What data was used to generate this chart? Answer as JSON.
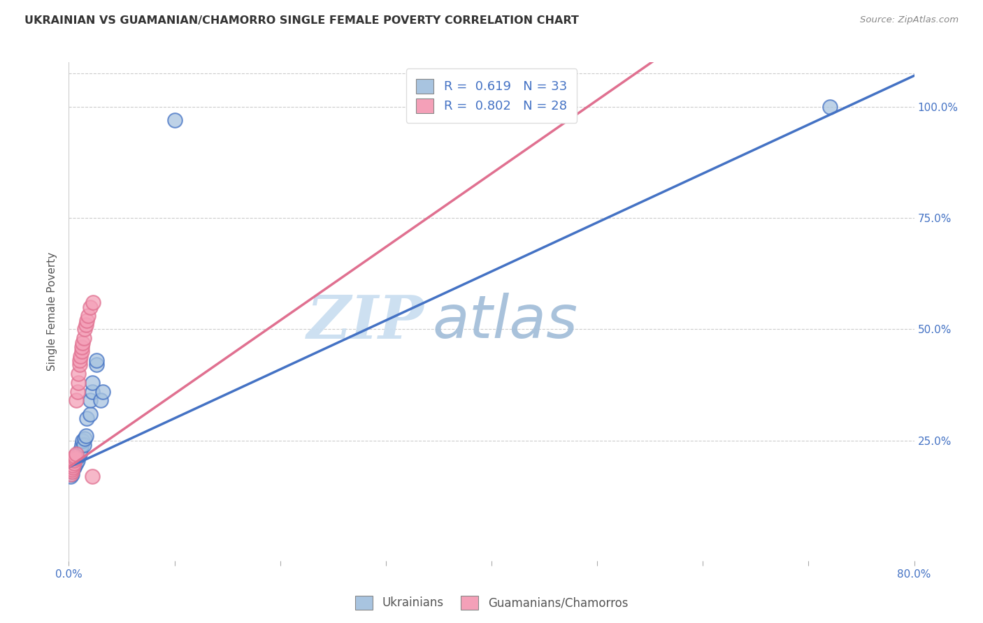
{
  "title": "UKRAINIAN VS GUAMANIAN/CHAMORRO SINGLE FEMALE POVERTY CORRELATION CHART",
  "source": "Source: ZipAtlas.com",
  "ylabel": "Single Female Poverty",
  "legend_label1": "Ukrainians",
  "legend_label2": "Guamanians/Chamorros",
  "r1": 0.619,
  "n1": 33,
  "r2": 0.802,
  "n2": 28,
  "ytick_labels": [
    "25.0%",
    "50.0%",
    "75.0%",
    "100.0%"
  ],
  "ytick_values": [
    0.25,
    0.5,
    0.75,
    1.0
  ],
  "xlim": [
    0.0,
    0.8
  ],
  "ylim": [
    -0.02,
    1.1
  ],
  "color_blue": "#a8c4e0",
  "color_pink": "#f4a0b8",
  "line_blue": "#4472c4",
  "line_pink": "#e07090",
  "watermark_zip": "ZIP",
  "watermark_atlas": "atlas",
  "blue_scatter": [
    [
      0.002,
      0.17
    ],
    [
      0.003,
      0.175
    ],
    [
      0.003,
      0.18
    ],
    [
      0.004,
      0.185
    ],
    [
      0.004,
      0.19
    ],
    [
      0.005,
      0.19
    ],
    [
      0.005,
      0.195
    ],
    [
      0.006,
      0.195
    ],
    [
      0.006,
      0.2
    ],
    [
      0.007,
      0.2
    ],
    [
      0.007,
      0.21
    ],
    [
      0.008,
      0.205
    ],
    [
      0.008,
      0.215
    ],
    [
      0.009,
      0.215
    ],
    [
      0.01,
      0.22
    ],
    [
      0.01,
      0.225
    ],
    [
      0.011,
      0.23
    ],
    [
      0.012,
      0.24
    ],
    [
      0.013,
      0.25
    ],
    [
      0.014,
      0.24
    ],
    [
      0.015,
      0.255
    ],
    [
      0.016,
      0.26
    ],
    [
      0.017,
      0.3
    ],
    [
      0.02,
      0.31
    ],
    [
      0.02,
      0.34
    ],
    [
      0.022,
      0.36
    ],
    [
      0.022,
      0.38
    ],
    [
      0.026,
      0.42
    ],
    [
      0.026,
      0.43
    ],
    [
      0.03,
      0.34
    ],
    [
      0.032,
      0.36
    ],
    [
      0.1,
      0.97
    ],
    [
      0.72,
      1.0
    ]
  ],
  "pink_scatter": [
    [
      0.002,
      0.175
    ],
    [
      0.003,
      0.18
    ],
    [
      0.003,
      0.185
    ],
    [
      0.004,
      0.19
    ],
    [
      0.004,
      0.195
    ],
    [
      0.005,
      0.2
    ],
    [
      0.005,
      0.205
    ],
    [
      0.006,
      0.21
    ],
    [
      0.006,
      0.215
    ],
    [
      0.007,
      0.22
    ],
    [
      0.007,
      0.34
    ],
    [
      0.008,
      0.36
    ],
    [
      0.009,
      0.38
    ],
    [
      0.009,
      0.4
    ],
    [
      0.01,
      0.42
    ],
    [
      0.01,
      0.43
    ],
    [
      0.011,
      0.44
    ],
    [
      0.012,
      0.45
    ],
    [
      0.012,
      0.46
    ],
    [
      0.013,
      0.47
    ],
    [
      0.014,
      0.48
    ],
    [
      0.015,
      0.5
    ],
    [
      0.016,
      0.51
    ],
    [
      0.017,
      0.52
    ],
    [
      0.018,
      0.53
    ],
    [
      0.02,
      0.55
    ],
    [
      0.022,
      0.17
    ],
    [
      0.023,
      0.56
    ]
  ],
  "blue_line_m": 1.1,
  "blue_line_b": 0.19,
  "pink_line_m": 1.65,
  "pink_line_b": 0.19
}
